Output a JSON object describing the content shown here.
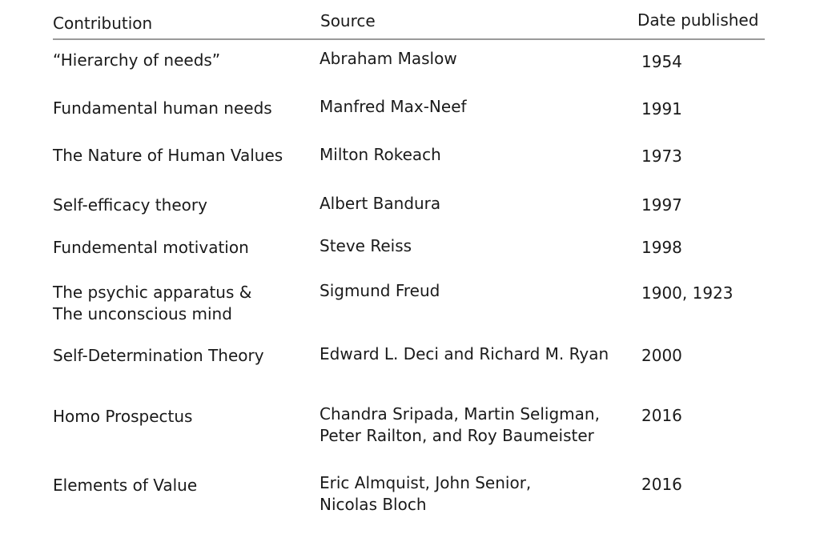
{
  "table": {
    "headers": {
      "contribution": "Contribution",
      "source": "Source",
      "date": "Date published"
    },
    "rows": [
      {
        "contribution": [
          "“Hierarchy of needs”"
        ],
        "source": [
          "Abraham Maslow"
        ],
        "date": "1954"
      },
      {
        "contribution": [
          "Fundamental human needs"
        ],
        "source": [
          "Manfred Max-Neef"
        ],
        "date": "1991"
      },
      {
        "contribution": [
          "The Nature of Human Values"
        ],
        "source": [
          "Milton Rokeach"
        ],
        "date": "1973"
      },
      {
        "contribution": [
          "Self-efficacy theory"
        ],
        "source": [
          "Albert Bandura"
        ],
        "date": "1997"
      },
      {
        "contribution": [
          "Fundemental motivation"
        ],
        "source": [
          "Steve Reiss"
        ],
        "date": "1998"
      },
      {
        "contribution": [
          "The psychic apparatus &",
          "The unconscious mind"
        ],
        "source": [
          "Sigmund Freud"
        ],
        "date": "1900, 1923"
      },
      {
        "contribution": [
          "Self-Determination Theory"
        ],
        "source": [
          "Edward L. Deci and Richard M. Ryan"
        ],
        "date": "2000"
      },
      {
        "contribution": [
          "Homo Prospectus"
        ],
        "source": [
          "Chandra Sripada, Martin Seligman,",
          "Peter Railton, and Roy Baumeister"
        ],
        "date": "2016"
      },
      {
        "contribution": [
          "Elements of Value"
        ],
        "source": [
          "Eric Almquist, John Senior,",
          "Nicolas Bloch"
        ],
        "date": "2016"
      }
    ]
  }
}
